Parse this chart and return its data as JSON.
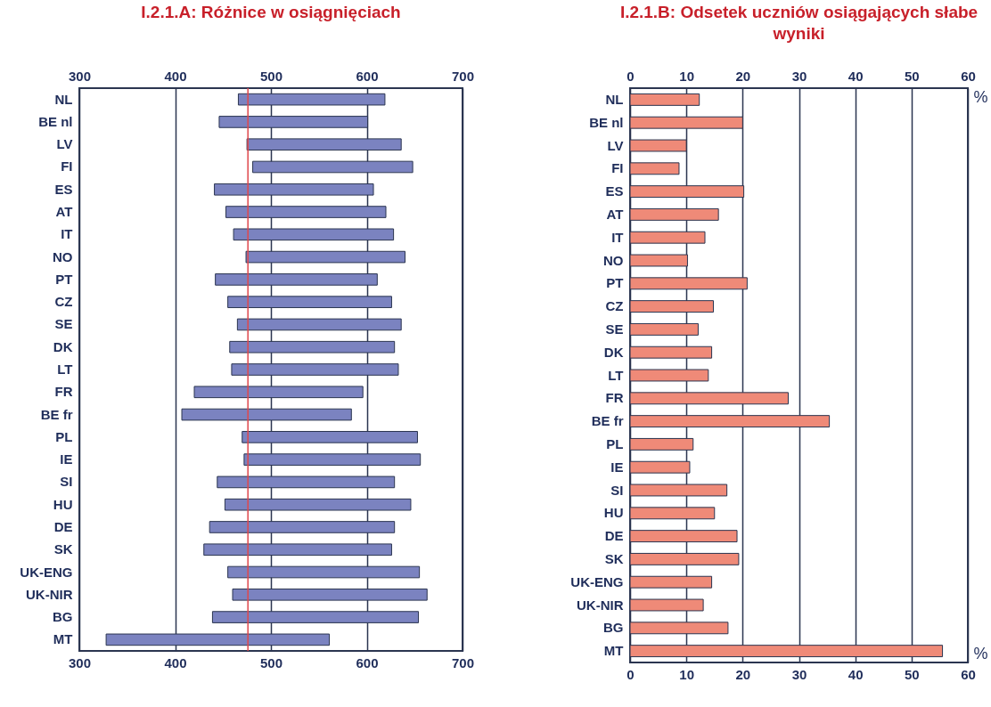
{
  "chart_data": [
    {
      "type": "bar",
      "orientation": "horizontal",
      "title": "I.2.1.A: Różnice w osiągnięciach",
      "categories": [
        "NL",
        "BE nl",
        "LV",
        "FI",
        "ES",
        "AT",
        "IT",
        "NO",
        "PT",
        "CZ",
        "SE",
        "DK",
        "LT",
        "FR",
        "BE fr",
        "PL",
        "IE",
        "SI",
        "HU",
        "DE",
        "SK",
        "UK-ENG",
        "UK-NIR",
        "BG",
        "MT"
      ],
      "base": [
        466,
        446,
        475,
        481,
        441,
        453,
        461,
        474,
        442,
        455,
        465,
        457,
        459,
        420,
        407,
        470,
        472,
        444,
        452,
        436,
        430,
        455,
        460,
        439,
        328
      ],
      "values": [
        153,
        155,
        161,
        167,
        166,
        167,
        167,
        166,
        169,
        171,
        171,
        172,
        174,
        176,
        177,
        183,
        184,
        185,
        194,
        193,
        196,
        200,
        203,
        215,
        233
      ],
      "color": "#7b83c0",
      "xlim": [
        300,
        700
      ],
      "xticks": [
        300,
        400,
        500,
        600,
        700
      ],
      "x2lim": [
        300,
        700
      ],
      "x2ticks": [
        300,
        400,
        500,
        600,
        700
      ],
      "grid": "x",
      "ref_lines": [
        {
          "axis": "x",
          "value": 476,
          "color": "#e0474c"
        }
      ]
    },
    {
      "type": "bar",
      "orientation": "horizontal",
      "title": "I.2.1.B: Odsetek uczniów osiągających słabe wyniki",
      "categories": [
        "NL",
        "BE nl",
        "LV",
        "FI",
        "ES",
        "AT",
        "IT",
        "NO",
        "PT",
        "CZ",
        "SE",
        "DK",
        "LT",
        "FR",
        "BE fr",
        "PL",
        "IE",
        "SI",
        "HU",
        "DE",
        "SK",
        "UK-ENG",
        "UK-NIR",
        "BG",
        "MT"
      ],
      "values": [
        12.3,
        20.0,
        10.0,
        8.7,
        20.2,
        15.7,
        13.3,
        10.2,
        20.8,
        14.8,
        12.1,
        14.5,
        13.9,
        28.1,
        35.4,
        11.2,
        10.6,
        17.2,
        15.0,
        19.0,
        19.3,
        14.5,
        13.0,
        17.4,
        55.5
      ],
      "color": "#ef8a78",
      "xlabel": "%",
      "x2label": "%",
      "xlim": [
        0,
        60
      ],
      "xticks": [
        0,
        10,
        20,
        30,
        40,
        50,
        60
      ],
      "x2lim": [
        0,
        60
      ],
      "x2ticks": [
        0,
        10,
        20,
        30,
        40,
        50,
        60
      ],
      "grid": "x"
    }
  ]
}
